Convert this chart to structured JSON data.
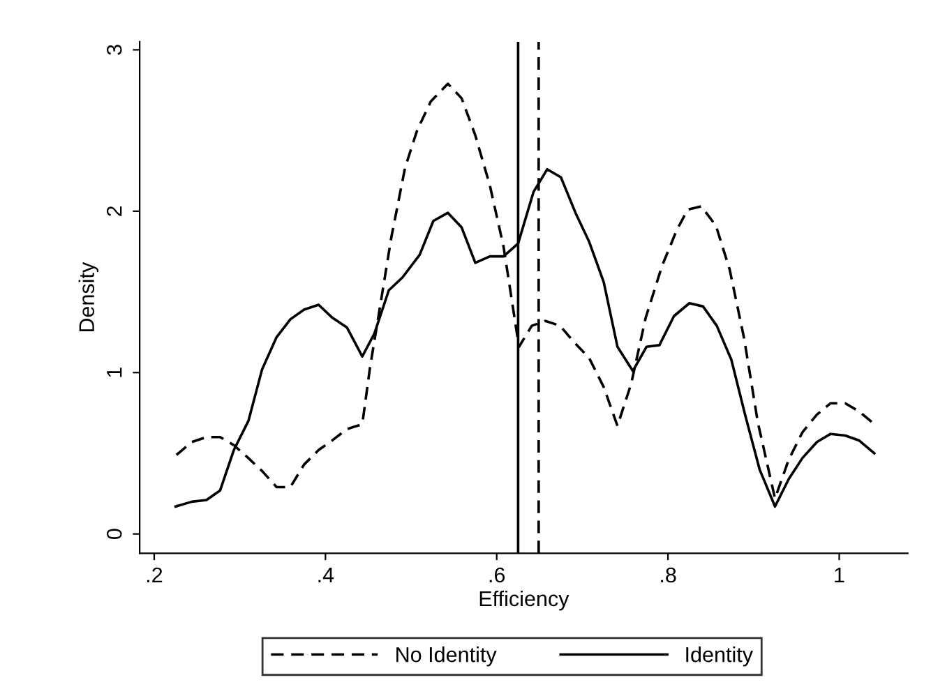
{
  "chart_data": {
    "type": "line",
    "xlabel": "Efficiency",
    "ylabel": "Density",
    "xlim": [
      0.183,
      1.08
    ],
    "ylim": [
      -0.12,
      3.05
    ],
    "xticks": [
      {
        "value": 0.2,
        "label": ".2"
      },
      {
        "value": 0.4,
        "label": ".4"
      },
      {
        "value": 0.6,
        "label": ".6"
      },
      {
        "value": 0.8,
        "label": ".8"
      },
      1
    ],
    "yticks": [
      0,
      1,
      2,
      3
    ],
    "grid": false,
    "legend": "bottom",
    "series": [
      {
        "name": "No Identity",
        "color": "#000000",
        "line_style": "dashed",
        "x": [
          0.226,
          0.244,
          0.261,
          0.277,
          0.293,
          0.31,
          0.326,
          0.343,
          0.359,
          0.375,
          0.392,
          0.408,
          0.425,
          0.443,
          0.452,
          0.461,
          0.477,
          0.493,
          0.507,
          0.523,
          0.543,
          0.559,
          0.575,
          0.592,
          0.608,
          0.626,
          0.641,
          0.657,
          0.674,
          0.69,
          0.708,
          0.725,
          0.741,
          0.757,
          0.774,
          0.793,
          0.81,
          0.823,
          0.839,
          0.856,
          0.872,
          0.889,
          0.905,
          0.925,
          0.941,
          0.957,
          0.974,
          0.99,
          1.007,
          1.023,
          1.039
        ],
        "values": [
          0.49,
          0.57,
          0.6,
          0.6,
          0.55,
          0.47,
          0.39,
          0.29,
          0.29,
          0.43,
          0.52,
          0.58,
          0.65,
          0.68,
          1.03,
          1.32,
          1.84,
          2.27,
          2.5,
          2.68,
          2.79,
          2.7,
          2.47,
          2.16,
          1.78,
          1.16,
          1.29,
          1.32,
          1.29,
          1.19,
          1.09,
          0.91,
          0.67,
          0.93,
          1.34,
          1.66,
          1.88,
          2.01,
          2.03,
          1.91,
          1.64,
          1.21,
          0.69,
          0.22,
          0.46,
          0.63,
          0.74,
          0.81,
          0.81,
          0.76,
          0.69
        ]
      },
      {
        "name": "Identity",
        "color": "#000000",
        "line_style": "solid",
        "x": [
          0.225,
          0.244,
          0.261,
          0.277,
          0.293,
          0.31,
          0.326,
          0.343,
          0.359,
          0.375,
          0.392,
          0.408,
          0.425,
          0.443,
          0.457,
          0.474,
          0.49,
          0.51,
          0.526,
          0.543,
          0.559,
          0.575,
          0.592,
          0.608,
          0.625,
          0.643,
          0.659,
          0.675,
          0.692,
          0.708,
          0.725,
          0.741,
          0.759,
          0.775,
          0.79,
          0.807,
          0.825,
          0.841,
          0.857,
          0.874,
          0.89,
          0.907,
          0.925,
          0.941,
          0.957,
          0.974,
          0.99,
          1.007,
          1.023,
          1.041
        ],
        "values": [
          0.17,
          0.2,
          0.21,
          0.27,
          0.52,
          0.7,
          1.02,
          1.22,
          1.33,
          1.39,
          1.42,
          1.34,
          1.28,
          1.1,
          1.24,
          1.51,
          1.59,
          1.73,
          1.94,
          1.99,
          1.9,
          1.68,
          1.72,
          1.72,
          1.8,
          2.12,
          2.26,
          2.21,
          1.99,
          1.81,
          1.56,
          1.16,
          1.01,
          1.16,
          1.17,
          1.35,
          1.43,
          1.41,
          1.29,
          1.08,
          0.74,
          0.4,
          0.17,
          0.34,
          0.47,
          0.57,
          0.62,
          0.61,
          0.58,
          0.5
        ]
      }
    ],
    "ref_lines": [
      {
        "axis": "x",
        "value": 0.625,
        "color": "#000000",
        "line_style": "solid"
      },
      {
        "axis": "x",
        "value": 0.649,
        "color": "#000000",
        "line_style": "dashed"
      }
    ]
  }
}
